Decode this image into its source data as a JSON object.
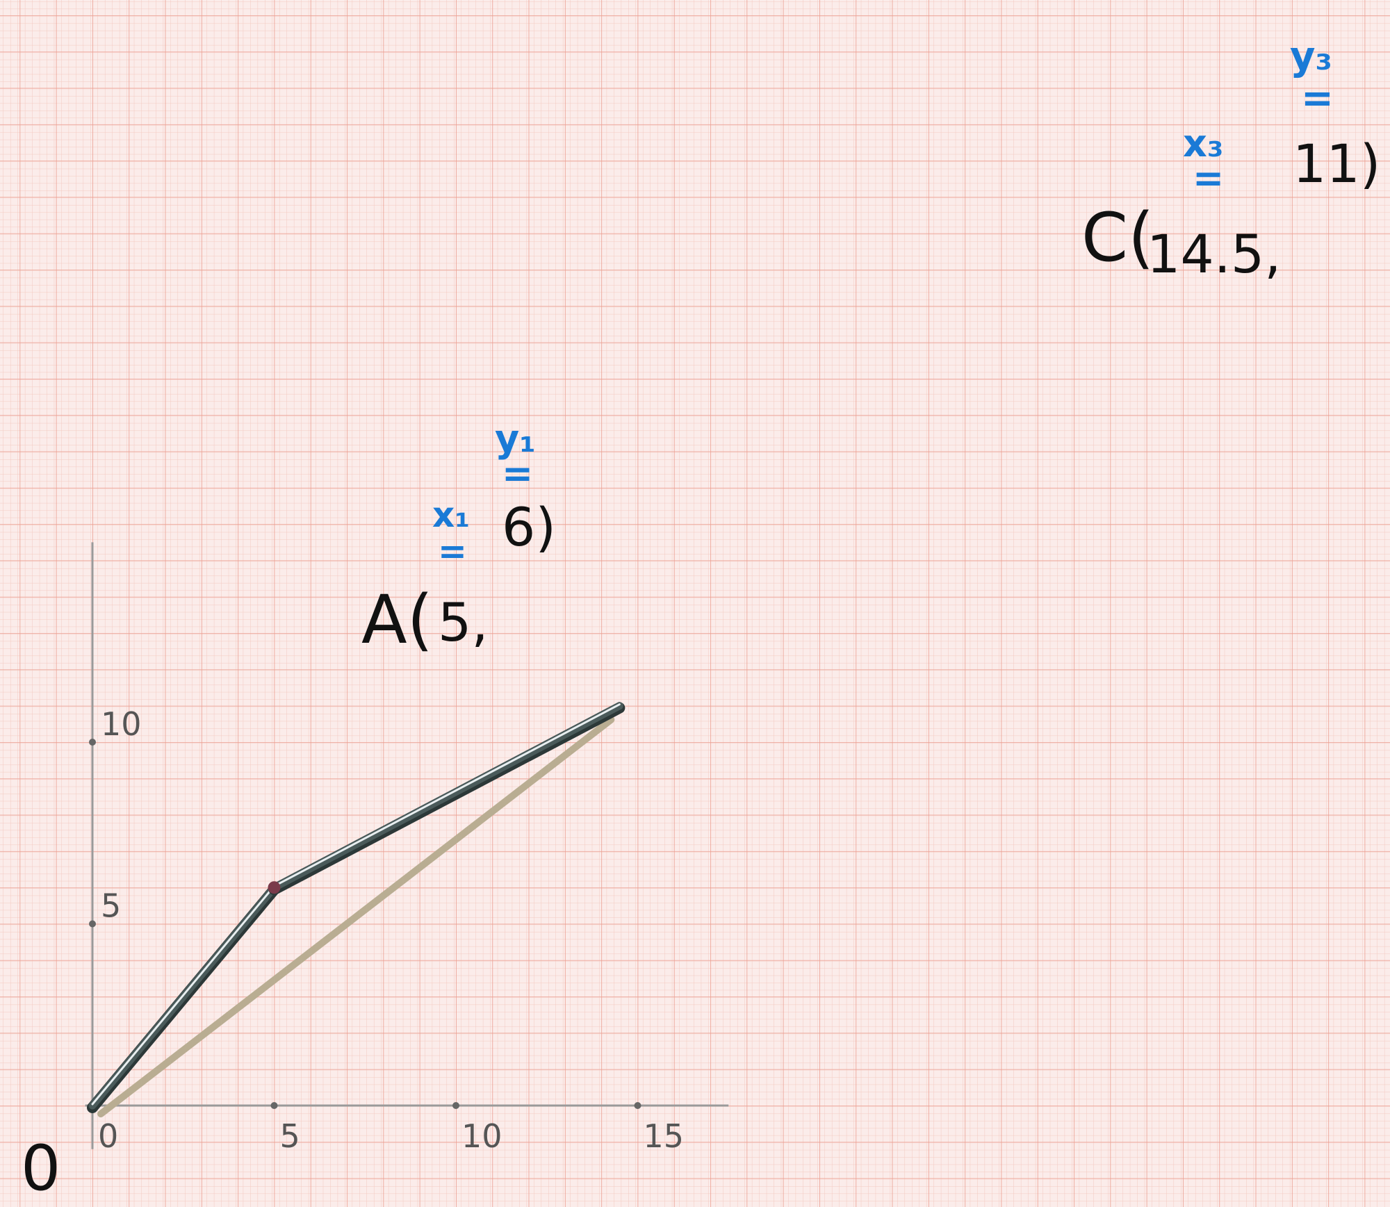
{
  "diagram": {
    "origin_label": "0",
    "x_ticks": [
      {
        "value": 0,
        "label": "0"
      },
      {
        "value": 5,
        "label": "5"
      },
      {
        "value": 10,
        "label": "10"
      },
      {
        "value": 15,
        "label": "15"
      }
    ],
    "y_ticks": [
      {
        "value": 5,
        "label": "5"
      },
      {
        "value": 10,
        "label": "10"
      }
    ],
    "x_range": [
      -0.2,
      17.5
    ],
    "y_range": [
      -1.2,
      15.5
    ],
    "points": [
      {
        "id": "O",
        "x": 0,
        "y": 0
      },
      {
        "id": "A",
        "x": 5,
        "y": 6
      },
      {
        "id": "C",
        "x": 14.5,
        "y": 11
      }
    ],
    "point_A": {
      "prefix": "A(",
      "x_text": "5,",
      "y_text": "6)",
      "x_var": "x₁",
      "y_var": "y₁",
      "eq": "="
    },
    "point_C": {
      "prefix": "C(",
      "x_text": "14.5,",
      "y_text": "11)",
      "x_var": "x₃",
      "y_var": "y₃",
      "eq": "="
    },
    "colors": {
      "paper": "#fbecea",
      "grid_fine": "#f3c9c0",
      "grid_major": "#ec9f92",
      "axis": "#9a9a9a",
      "wire": "#4a5a5a",
      "wire_highlight": "#e8eef0",
      "straw": "#b9ad92",
      "ink": "#111111",
      "blue_ink": "#1a7ad6"
    }
  }
}
